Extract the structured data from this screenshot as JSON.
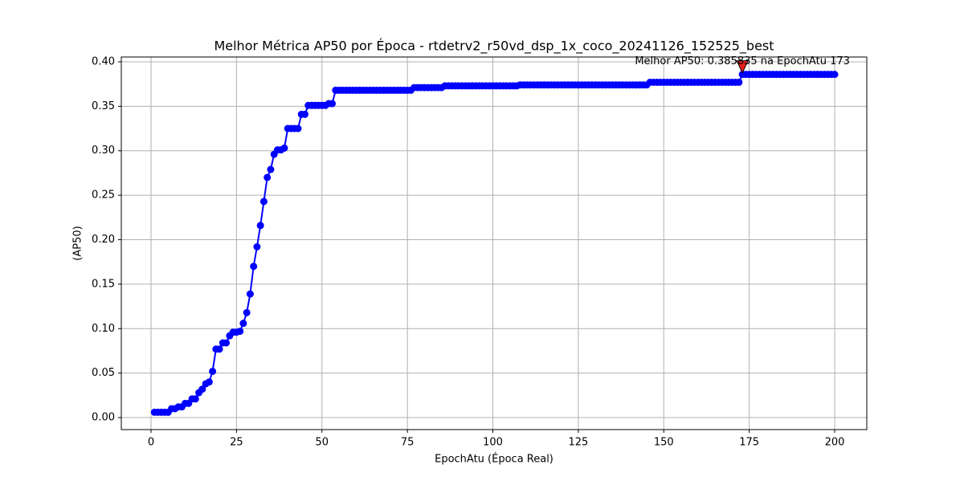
{
  "chart_data": {
    "type": "line",
    "title": "Melhor Métrica AP50 por Época - rtdetrv2_r50vd_dsp_1x_coco_20241126_152525_best",
    "x_label": "EpochAtu (Época Real)",
    "y_label": "(AP50)",
    "x": [
      1,
      2,
      3,
      4,
      5,
      6,
      7,
      8,
      9,
      10,
      11,
      12,
      13,
      14,
      15,
      16,
      17,
      18,
      19,
      20,
      21,
      22,
      23,
      24,
      25,
      26,
      27,
      28,
      29,
      30,
      31,
      32,
      33,
      34,
      35,
      36,
      37,
      38,
      39,
      40,
      41,
      42,
      43,
      44,
      45,
      46,
      47,
      48,
      49,
      50,
      51,
      52,
      53,
      54,
      55,
      56,
      57,
      58,
      59,
      60,
      61,
      62,
      63,
      64,
      65,
      66,
      67,
      68,
      69,
      70,
      71,
      72,
      73,
      74,
      75,
      76,
      77,
      78,
      79,
      80,
      81,
      82,
      83,
      84,
      85,
      86,
      87,
      88,
      89,
      90,
      91,
      92,
      93,
      94,
      95,
      96,
      97,
      98,
      99,
      100,
      101,
      102,
      103,
      104,
      105,
      106,
      107,
      108,
      109,
      110,
      111,
      112,
      113,
      114,
      115,
      116,
      117,
      118,
      119,
      120,
      121,
      122,
      123,
      124,
      125,
      126,
      127,
      128,
      129,
      130,
      131,
      132,
      133,
      134,
      135,
      136,
      137,
      138,
      139,
      140,
      141,
      142,
      143,
      144,
      145,
      146,
      147,
      148,
      149,
      150,
      151,
      152,
      153,
      154,
      155,
      156,
      157,
      158,
      159,
      160,
      161,
      162,
      163,
      164,
      165,
      166,
      167,
      168,
      169,
      170,
      171,
      172,
      173,
      174,
      175,
      176,
      177,
      178,
      179,
      180,
      181,
      182,
      183,
      184,
      185,
      186,
      187,
      188,
      189,
      190,
      191,
      192,
      193,
      194,
      195,
      196,
      197,
      198,
      199,
      200
    ],
    "values": [
      0.006,
      0.006,
      0.006,
      0.006,
      0.006,
      0.01,
      0.01,
      0.012,
      0.012,
      0.016,
      0.016,
      0.021,
      0.021,
      0.028,
      0.032,
      0.038,
      0.04,
      0.052,
      0.077,
      0.077,
      0.084,
      0.084,
      0.092,
      0.096,
      0.096,
      0.097,
      0.106,
      0.118,
      0.139,
      0.17,
      0.192,
      0.216,
      0.243,
      0.27,
      0.279,
      0.296,
      0.301,
      0.301,
      0.303,
      0.325,
      0.325,
      0.325,
      0.325,
      0.341,
      0.341,
      0.351,
      0.351,
      0.351,
      0.351,
      0.351,
      0.351,
      0.353,
      0.353,
      0.368,
      0.368,
      0.368,
      0.368,
      0.368,
      0.368,
      0.368,
      0.368,
      0.368,
      0.368,
      0.368,
      0.368,
      0.368,
      0.368,
      0.368,
      0.368,
      0.368,
      0.368,
      0.368,
      0.368,
      0.368,
      0.368,
      0.368,
      0.371,
      0.371,
      0.371,
      0.371,
      0.371,
      0.371,
      0.371,
      0.371,
      0.371,
      0.373,
      0.373,
      0.373,
      0.373,
      0.373,
      0.373,
      0.373,
      0.373,
      0.373,
      0.373,
      0.373,
      0.373,
      0.373,
      0.373,
      0.373,
      0.373,
      0.373,
      0.373,
      0.373,
      0.373,
      0.373,
      0.373,
      0.374,
      0.374,
      0.374,
      0.374,
      0.374,
      0.374,
      0.374,
      0.374,
      0.374,
      0.374,
      0.374,
      0.374,
      0.374,
      0.374,
      0.374,
      0.374,
      0.374,
      0.374,
      0.374,
      0.374,
      0.374,
      0.374,
      0.374,
      0.374,
      0.374,
      0.374,
      0.374,
      0.374,
      0.374,
      0.374,
      0.374,
      0.374,
      0.374,
      0.374,
      0.374,
      0.374,
      0.374,
      0.374,
      0.377,
      0.377,
      0.377,
      0.377,
      0.377,
      0.377,
      0.377,
      0.377,
      0.377,
      0.377,
      0.377,
      0.377,
      0.377,
      0.377,
      0.377,
      0.377,
      0.377,
      0.377,
      0.377,
      0.377,
      0.377,
      0.377,
      0.377,
      0.377,
      0.377,
      0.377,
      0.377,
      0.385835,
      0.385835,
      0.385835,
      0.385835,
      0.385835,
      0.385835,
      0.385835,
      0.385835,
      0.385835,
      0.385835,
      0.385835,
      0.385835,
      0.385835,
      0.385835,
      0.385835,
      0.385835,
      0.385835,
      0.385835,
      0.385835,
      0.385835,
      0.385835,
      0.385835,
      0.385835,
      0.385835,
      0.385835,
      0.385835,
      0.385835,
      0.385835
    ],
    "color": "#0000ff",
    "annotation": {
      "text": "Melhor AP50: 0.385835 na EpochAtu 173",
      "x": 173,
      "y": 0.385835,
      "color": "#e8201c"
    },
    "xlim": [
      -8.7,
      209.4
    ],
    "xticks": [
      0,
      25,
      50,
      75,
      100,
      125,
      150,
      175,
      200
    ],
    "ylim": [
      -0.0135,
      0.4054
    ],
    "yticks": [
      {
        "value": 0,
        "label": "0.00"
      },
      {
        "value": 0.05,
        "label": "0.05"
      },
      {
        "value": 0.1,
        "label": "0.10"
      },
      {
        "value": 0.15,
        "label": "0.15"
      },
      {
        "value": 0.2,
        "label": "0.20"
      },
      {
        "value": 0.25,
        "label": "0.25"
      },
      {
        "value": 0.3,
        "label": "0.30"
      },
      {
        "value": 0.35,
        "label": "0.35"
      },
      {
        "value": 0.4,
        "label": "0.40"
      }
    ],
    "grid": true
  }
}
